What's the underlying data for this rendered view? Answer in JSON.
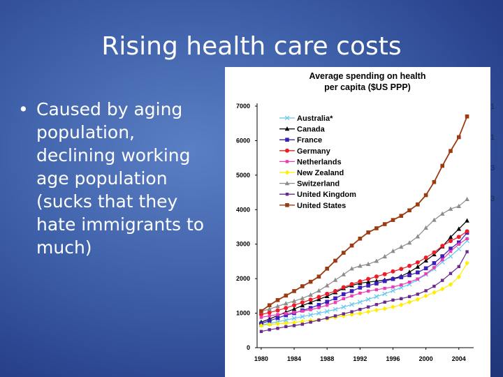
{
  "slide": {
    "title": "Rising health care costs",
    "bullet_symbol": "•",
    "bullet_text": "Caused by aging population, declining working age population (sucks that they hate immigrants to much)"
  },
  "chart_data": {
    "type": "line",
    "title_lines": [
      "Average spending on health",
      "per capita ($US PPP)"
    ],
    "xlabel": "",
    "ylabel": "",
    "x": [
      1980,
      1981,
      1982,
      1983,
      1984,
      1985,
      1986,
      1987,
      1988,
      1989,
      1990,
      1991,
      1992,
      1993,
      1994,
      1995,
      1996,
      1997,
      1998,
      1999,
      2000,
      2001,
      2002,
      2003,
      2004,
      2005
    ],
    "x_ticks": [
      "1980",
      "1984",
      "1988",
      "1992",
      "1996",
      "2000",
      "2004"
    ],
    "x_tick_values": [
      1980,
      1984,
      1988,
      1992,
      1996,
      2000,
      2004
    ],
    "xlim": [
      1979.5,
      2005.8
    ],
    "ylim": [
      0,
      7000
    ],
    "y_ticks": [
      "0",
      "1000",
      "2000",
      "3000",
      "4000",
      "5000",
      "6000",
      "7000"
    ],
    "y_tick_values": [
      0,
      1000,
      2000,
      3000,
      4000,
      5000,
      6000,
      7000
    ],
    "grid": false,
    "legend_position": "top-left",
    "series": [
      {
        "name": "Australia*",
        "color": "#66c8ee",
        "marker": "x",
        "values": [
          660,
          700,
          750,
          800,
          850,
          900,
          950,
          1000,
          1050,
          1110,
          1180,
          1250,
          1320,
          1400,
          1480,
          1560,
          1650,
          1740,
          1840,
          1970,
          2120,
          2280,
          2480,
          2650,
          2860,
          3100
        ]
      },
      {
        "name": "Canada",
        "color": "#000000",
        "marker": "triangle",
        "values": [
          740,
          830,
          930,
          1030,
          1120,
          1220,
          1310,
          1400,
          1490,
          1600,
          1720,
          1800,
          1870,
          1900,
          1930,
          1960,
          2000,
          2070,
          2190,
          2340,
          2520,
          2700,
          2930,
          3200,
          3440,
          3680
        ]
      },
      {
        "name": "France",
        "color": "#3a1fb8",
        "marker": "square",
        "values": [
          700,
          780,
          860,
          940,
          1000,
          1080,
          1150,
          1240,
          1330,
          1430,
          1550,
          1640,
          1740,
          1800,
          1860,
          1930,
          1990,
          2040,
          2100,
          2180,
          2300,
          2450,
          2650,
          2870,
          3050,
          3330
        ]
      },
      {
        "name": "Germany",
        "color": "#ee1c24",
        "marker": "circle",
        "values": [
          960,
          1020,
          1080,
          1150,
          1230,
          1310,
          1390,
          1470,
          1560,
          1640,
          1750,
          1840,
          1920,
          1990,
          2060,
          2130,
          2210,
          2280,
          2370,
          2470,
          2610,
          2760,
          2950,
          3090,
          3210,
          3370
        ]
      },
      {
        "name": "Netherlands",
        "color": "#ee3ab4",
        "marker": "square-small",
        "values": [
          880,
          920,
          960,
          990,
          1020,
          1060,
          1100,
          1160,
          1230,
          1310,
          1420,
          1500,
          1580,
          1640,
          1680,
          1720,
          1760,
          1820,
          1900,
          1990,
          2140,
          2320,
          2550,
          2790,
          3000,
          3160
        ]
      },
      {
        "name": "New Zealand",
        "color": "#ffee00",
        "marker": "diamond",
        "values": [
          640,
          670,
          690,
          710,
          730,
          760,
          790,
          810,
          840,
          880,
          920,
          960,
          990,
          1040,
          1090,
          1130,
          1180,
          1240,
          1320,
          1400,
          1500,
          1600,
          1700,
          1830,
          2050,
          2450
        ]
      },
      {
        "name": "Switzerland",
        "color": "#8c8c8c",
        "marker": "triangle",
        "values": [
          1050,
          1120,
          1200,
          1280,
          1350,
          1430,
          1530,
          1650,
          1800,
          1960,
          2120,
          2290,
          2370,
          2420,
          2510,
          2640,
          2800,
          2920,
          3040,
          3220,
          3470,
          3700,
          3880,
          4020,
          4100,
          4300
        ]
      },
      {
        "name": "United Kingdom",
        "color": "#6a2a8c",
        "marker": "square-small",
        "values": [
          470,
          520,
          560,
          610,
          640,
          680,
          740,
          800,
          860,
          920,
          980,
          1040,
          1110,
          1180,
          1250,
          1320,
          1380,
          1420,
          1480,
          1550,
          1650,
          1780,
          1950,
          2150,
          2350,
          2780
        ]
      },
      {
        "name": "United States",
        "color": "#9c3a12",
        "marker": "square",
        "values": [
          1060,
          1230,
          1380,
          1510,
          1640,
          1780,
          1910,
          2060,
          2290,
          2520,
          2750,
          2960,
          3160,
          3340,
          3460,
          3580,
          3700,
          3820,
          3980,
          4150,
          4420,
          4800,
          5270,
          5700,
          6100,
          6700
        ]
      }
    ]
  },
  "edge_marks": [
    "1",
    "1",
    "3",
    "3"
  ]
}
